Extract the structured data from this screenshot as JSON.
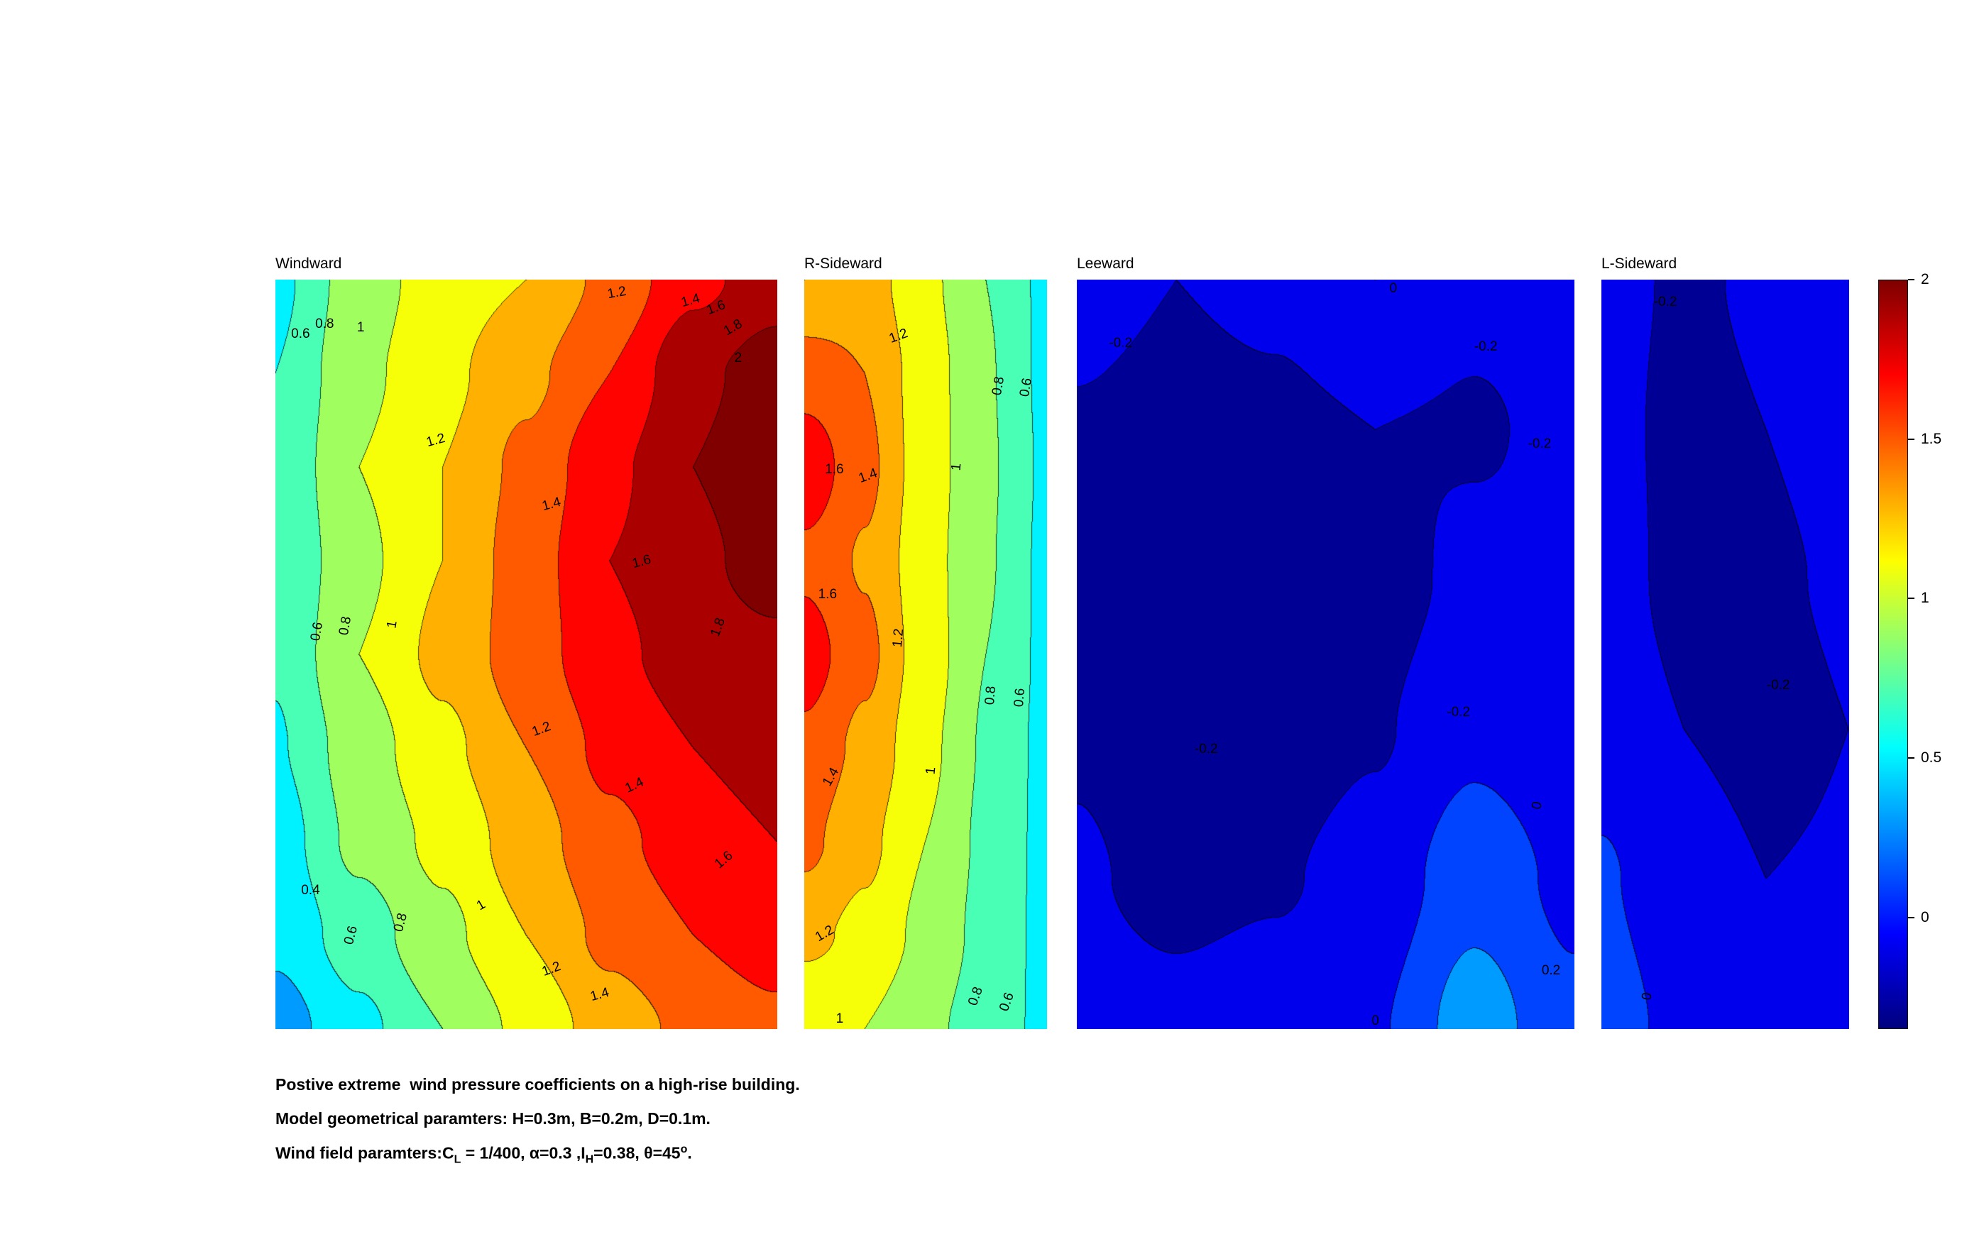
{
  "figure": {
    "caption": {
      "line1": "Postive extreme  wind pressure coefficients on a high-rise building.",
      "line2": "Model geometrical paramters: H=0.3m, B=0.2m, D=0.1m.",
      "line3_prefix": "Wind field paramters:C",
      "line3_sub1": "L",
      "line3_mid1": " = 1/400, α=0.3 ,I",
      "line3_sub2": "H",
      "line3_mid2": "=0.38, θ=45",
      "line3_sup": "o",
      "line3_end": "."
    }
  },
  "chart_data": {
    "type": "heatmap",
    "style": "filled-contour",
    "colormap": "jet",
    "contour_step": 0.2,
    "color_range": [
      -0.35,
      2.0
    ],
    "colorbar": {
      "min": -0.35,
      "max": 2.0,
      "ticks": [
        {
          "label": "2",
          "value": 2
        },
        {
          "label": "1.5",
          "value": 1.5
        },
        {
          "label": "1",
          "value": 1
        },
        {
          "label": "0.5",
          "value": 0.5
        },
        {
          "label": "0",
          "value": 0
        }
      ]
    },
    "panels": [
      {
        "title": "Windward",
        "grid": [
          [
            0.55,
            0.9,
            1.1,
            1.2,
            1.45,
            1.75,
            1.9
          ],
          [
            0.6,
            0.95,
            1.15,
            1.35,
            1.6,
            1.95,
            2.1
          ],
          [
            0.62,
            1.0,
            1.2,
            1.45,
            1.75,
            2.0,
            2.15
          ],
          [
            0.6,
            0.95,
            1.2,
            1.5,
            1.8,
            1.95,
            2.1
          ],
          [
            0.62,
            1.0,
            1.25,
            1.5,
            1.75,
            1.9,
            1.95
          ],
          [
            0.58,
            0.9,
            1.15,
            1.4,
            1.65,
            1.8,
            1.9
          ],
          [
            0.5,
            0.85,
            1.05,
            1.3,
            1.55,
            1.7,
            1.8
          ],
          [
            0.45,
            0.7,
            0.95,
            1.2,
            1.45,
            1.6,
            1.7
          ],
          [
            0.3,
            0.55,
            0.8,
            1.05,
            1.3,
            1.45,
            1.55
          ]
        ],
        "labels": [
          {
            "t": "0.6",
            "x": 0.05,
            "y": 0.073,
            "r": 0
          },
          {
            "t": "0.8",
            "x": 0.098,
            "y": 0.06,
            "r": 0
          },
          {
            "t": "1",
            "x": 0.17,
            "y": 0.064,
            "r": 0
          },
          {
            "t": "1.2",
            "x": 0.68,
            "y": 0.018,
            "r": -10
          },
          {
            "t": "1.4",
            "x": 0.828,
            "y": 0.028,
            "r": -15
          },
          {
            "t": "1.6",
            "x": 0.878,
            "y": 0.038,
            "r": -20
          },
          {
            "t": "1.8",
            "x": 0.913,
            "y": 0.064,
            "r": -30
          },
          {
            "t": "2",
            "x": 0.922,
            "y": 0.105,
            "r": 0
          },
          {
            "t": "1.2",
            "x": 0.32,
            "y": 0.215,
            "r": -15
          },
          {
            "t": "1.4",
            "x": 0.55,
            "y": 0.3,
            "r": -15
          },
          {
            "t": "1.6",
            "x": 0.73,
            "y": 0.377,
            "r": -15
          },
          {
            "t": "1.8",
            "x": 0.883,
            "y": 0.464,
            "r": -70
          },
          {
            "t": "0.6",
            "x": 0.084,
            "y": 0.47,
            "r": -80
          },
          {
            "t": "0.8",
            "x": 0.14,
            "y": 0.462,
            "r": -80
          },
          {
            "t": "1",
            "x": 0.234,
            "y": 0.46,
            "r": -80
          },
          {
            "t": "1.2",
            "x": 0.53,
            "y": 0.6,
            "r": -20
          },
          {
            "t": "1.4",
            "x": 0.715,
            "y": 0.675,
            "r": -25
          },
          {
            "t": "1.6",
            "x": 0.894,
            "y": 0.775,
            "r": -40
          },
          {
            "t": "0.4",
            "x": 0.07,
            "y": 0.815,
            "r": 0
          },
          {
            "t": "0.6",
            "x": 0.152,
            "y": 0.875,
            "r": -75
          },
          {
            "t": "0.8",
            "x": 0.25,
            "y": 0.858,
            "r": -75
          },
          {
            "t": "1",
            "x": 0.41,
            "y": 0.835,
            "r": -30
          },
          {
            "t": "1.2",
            "x": 0.55,
            "y": 0.92,
            "r": -20
          },
          {
            "t": "1.4",
            "x": 0.647,
            "y": 0.955,
            "r": -15
          }
        ]
      },
      {
        "title": "R-Sideward",
        "grid": [
          [
            1.2,
            1.3,
            1.05,
            0.8,
            0.56
          ],
          [
            1.5,
            1.4,
            1.1,
            0.82,
            0.56
          ],
          [
            1.75,
            1.45,
            1.1,
            0.83,
            0.57
          ],
          [
            1.55,
            1.38,
            1.08,
            0.82,
            0.56
          ],
          [
            1.7,
            1.45,
            1.1,
            0.8,
            0.56
          ],
          [
            1.55,
            1.35,
            1.05,
            0.78,
            0.55
          ],
          [
            1.45,
            1.25,
            1.0,
            0.76,
            0.55
          ],
          [
            1.25,
            1.15,
            0.95,
            0.74,
            0.55
          ],
          [
            1.0,
            1.0,
            0.85,
            0.7,
            0.56
          ]
        ],
        "labels": [
          {
            "t": "1.2",
            "x": 0.39,
            "y": 0.076,
            "r": -20
          },
          {
            "t": "0.8",
            "x": 0.8,
            "y": 0.142,
            "r": -80
          },
          {
            "t": "0.6",
            "x": 0.915,
            "y": 0.144,
            "r": -80
          },
          {
            "t": "1",
            "x": 0.63,
            "y": 0.25,
            "r": -85
          },
          {
            "t": "1.6",
            "x": 0.124,
            "y": 0.254,
            "r": 0
          },
          {
            "t": "1.4",
            "x": 0.264,
            "y": 0.262,
            "r": -20
          },
          {
            "t": "1.6",
            "x": 0.096,
            "y": 0.42,
            "r": 0
          },
          {
            "t": "1.2",
            "x": 0.388,
            "y": 0.478,
            "r": -85
          },
          {
            "t": "0.8",
            "x": 0.77,
            "y": 0.555,
            "r": -85
          },
          {
            "t": "0.6",
            "x": 0.888,
            "y": 0.558,
            "r": -85
          },
          {
            "t": "1.4",
            "x": 0.112,
            "y": 0.664,
            "r": -60
          },
          {
            "t": "1",
            "x": 0.522,
            "y": 0.655,
            "r": -85
          },
          {
            "t": "1.2",
            "x": 0.084,
            "y": 0.873,
            "r": -30
          },
          {
            "t": "0.8",
            "x": 0.708,
            "y": 0.956,
            "r": -70
          },
          {
            "t": "0.6",
            "x": 0.837,
            "y": 0.964,
            "r": -70
          },
          {
            "t": "1",
            "x": 0.146,
            "y": 0.987,
            "r": 0
          }
        ]
      },
      {
        "title": "Leeward",
        "grid": [
          [
            -0.12,
            -0.2,
            -0.15,
            0.0,
            -0.15,
            -0.1
          ],
          [
            -0.22,
            -0.28,
            -0.25,
            -0.2,
            -0.22,
            -0.15
          ],
          [
            -0.25,
            -0.3,
            -0.3,
            -0.28,
            -0.15,
            -0.18
          ],
          [
            -0.22,
            -0.3,
            -0.3,
            -0.22,
            -0.05,
            -0.15
          ],
          [
            -0.18,
            -0.25,
            -0.22,
            -0.12,
            0.12,
            -0.05
          ],
          [
            -0.12,
            -0.15,
            -0.1,
            -0.02,
            0.3,
            0.05
          ]
        ],
        "labels": [
          {
            "t": "0",
            "x": 0.636,
            "y": 0.012,
            "r": 0
          },
          {
            "t": "-0.2",
            "x": 0.088,
            "y": 0.085,
            "r": 0
          },
          {
            "t": "-0.2",
            "x": 0.822,
            "y": 0.09,
            "r": 0
          },
          {
            "t": "-0.2",
            "x": 0.93,
            "y": 0.22,
            "r": 0
          },
          {
            "t": "-0.2",
            "x": 0.767,
            "y": 0.578,
            "r": 0
          },
          {
            "t": "-0.2",
            "x": 0.26,
            "y": 0.627,
            "r": 0
          },
          {
            "t": "0",
            "x": 0.926,
            "y": 0.702,
            "r": -80
          },
          {
            "t": "0.2",
            "x": 0.953,
            "y": 0.922,
            "r": 0
          },
          {
            "t": "0",
            "x": 0.6,
            "y": 0.99,
            "r": 0
          }
        ]
      },
      {
        "title": "L-Sideward",
        "grid": [
          [
            -0.15,
            -0.22,
            -0.18,
            -0.12
          ],
          [
            -0.15,
            -0.24,
            -0.2,
            -0.15
          ],
          [
            -0.12,
            -0.25,
            -0.22,
            -0.18
          ],
          [
            -0.08,
            -0.2,
            -0.25,
            -0.2
          ],
          [
            0.02,
            -0.12,
            -0.2,
            -0.18
          ],
          [
            0.08,
            -0.05,
            -0.15,
            -0.15
          ]
        ],
        "labels": [
          {
            "t": "-0.2",
            "x": 0.258,
            "y": 0.03,
            "r": 0
          },
          {
            "t": "-0.2",
            "x": 0.714,
            "y": 0.542,
            "r": 0
          },
          {
            "t": "0",
            "x": 0.187,
            "y": 0.956,
            "r": -80
          }
        ]
      }
    ]
  }
}
